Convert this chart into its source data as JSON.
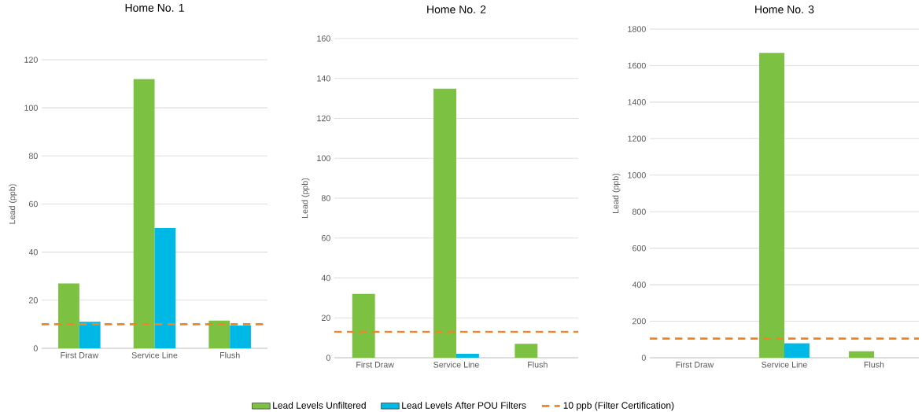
{
  "chart_data": [
    {
      "type": "bar",
      "title": "Home No. 1",
      "ylabel": "Lead (ppb)",
      "categories": [
        "First Draw",
        "Service Line",
        "Flush"
      ],
      "series": [
        {
          "name": "Lead Levels Unfiltered",
          "color": "#7cc142",
          "values": [
            27,
            112,
            11.5
          ]
        },
        {
          "name": "Lead Levels After POU Filters",
          "color": "#00b8e6",
          "values": [
            11,
            50,
            9.5
          ]
        }
      ],
      "ylim": [
        0,
        120
      ],
      "yticks": [
        0,
        20,
        40,
        60,
        80,
        100,
        120
      ],
      "grid": "y",
      "legend": "bottom",
      "ref_lines": [
        {
          "axis": "y",
          "value": 10,
          "label": "10 ppb (Filter Certification)",
          "color": "#f58220",
          "line_style": "dashed"
        }
      ]
    },
    {
      "type": "bar",
      "title": "Home No. 2",
      "ylabel": "Lead (ppb)",
      "categories": [
        "First Draw",
        "Service Line",
        "Flush"
      ],
      "series": [
        {
          "color": "#7cc142",
          "values": [
            32,
            135,
            7
          ]
        },
        {
          "color": "#00b8e6",
          "values": [
            null,
            2,
            null
          ]
        }
      ],
      "ylim": [
        0,
        160
      ],
      "yticks": [
        0,
        20,
        40,
        60,
        80,
        100,
        120,
        140,
        160
      ],
      "grid": "y",
      "ref_lines": [
        {
          "axis": "y",
          "value": 13,
          "color": "#f58220",
          "line_style": "dashed"
        }
      ]
    },
    {
      "type": "bar",
      "title": "Home No. 3",
      "ylabel": "Lead (ppb)",
      "categories": [
        "First Draw",
        "Service Line",
        "Flush"
      ],
      "series": [
        {
          "color": "#7cc142",
          "values": [
            null,
            1670,
            35
          ]
        },
        {
          "color": "#00b8e6",
          "values": [
            null,
            80,
            null
          ]
        }
      ],
      "ylim": [
        0,
        1800
      ],
      "yticks": [
        0,
        200,
        400,
        600,
        800,
        1000,
        1200,
        1400,
        1600,
        1800
      ],
      "grid": "y",
      "ref_lines": [
        {
          "axis": "y",
          "value": 105,
          "color": "#f58220",
          "line_style": "dashed"
        }
      ]
    }
  ]
}
